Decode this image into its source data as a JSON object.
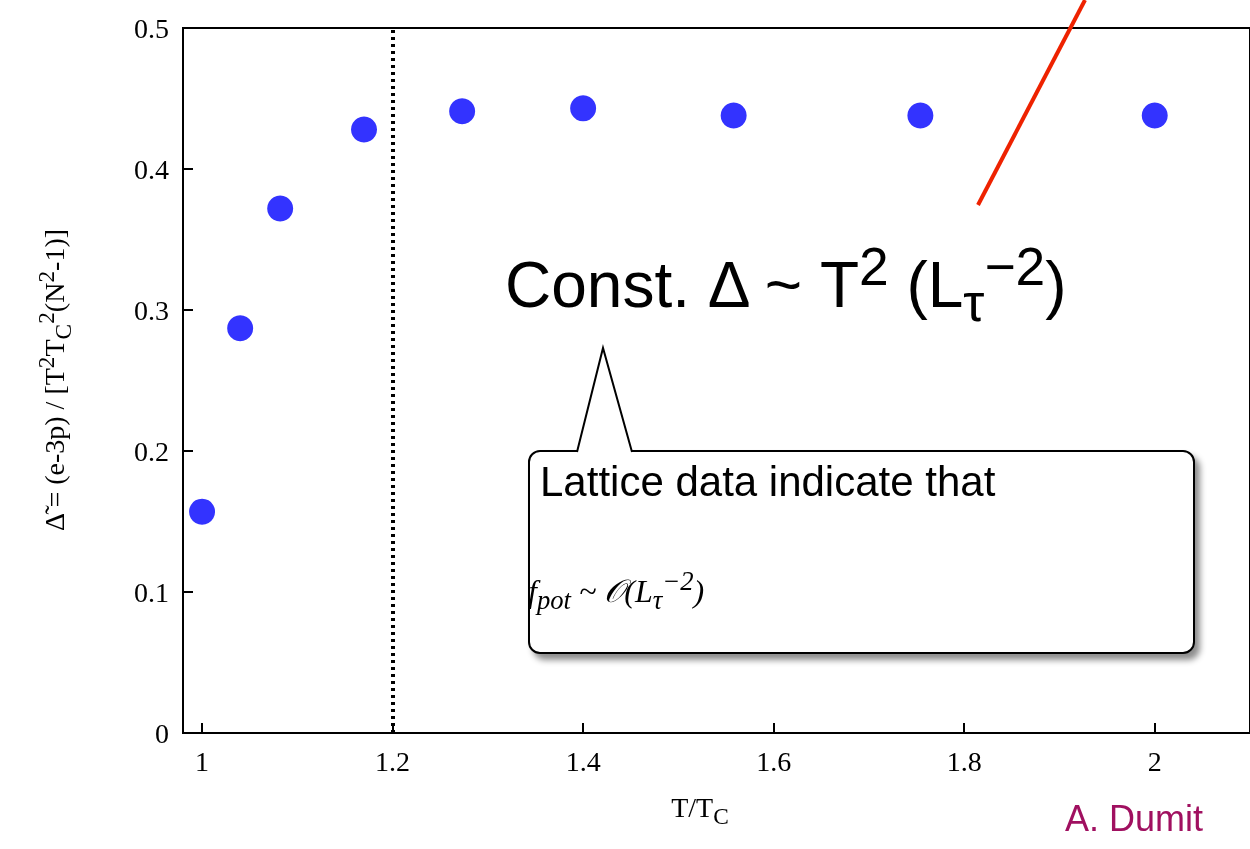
{
  "chart_data": {
    "type": "scatter",
    "xlabel": "T/T$_{C}$",
    "ylabel": "Δ̃ = (e-3p) / [T$^{2}$T$_{C}$$^{2}$(N$^{2}$-1)]",
    "x": [
      1.0,
      1.04,
      1.082,
      1.17,
      1.273,
      1.4,
      1.558,
      1.754,
      2.0
    ],
    "series": [
      {
        "color": "#0000ff",
        "values": [
          0.157,
          0.287,
          0.372,
          0.428,
          0.441,
          0.443,
          0.438,
          0.438,
          0.438
        ]
      }
    ],
    "xlim": [
      0.98,
      2.1
    ],
    "xticks": [
      1,
      1.2,
      1.4,
      1.6,
      1.8,
      2
    ],
    "ylim": [
      0,
      0.5
    ],
    "yticks": [
      0,
      0.1,
      0.2,
      0.3,
      0.4,
      0.5
    ],
    "ref_lines": [
      {
        "axis": "x",
        "value": 1.2,
        "color": "#000000",
        "line_style": "dotted"
      }
    ],
    "annotations": [
      "Const. Δ ~ T$^{2}$ (L$_{τ}$$^{−2}$)",
      "Lattice data indicate that",
      "f$_{pot}$ ~ 𝒪(L$_{τ}$$^{−2}$)",
      "A. Dumit"
    ],
    "marker": "circle",
    "grid": false
  }
}
